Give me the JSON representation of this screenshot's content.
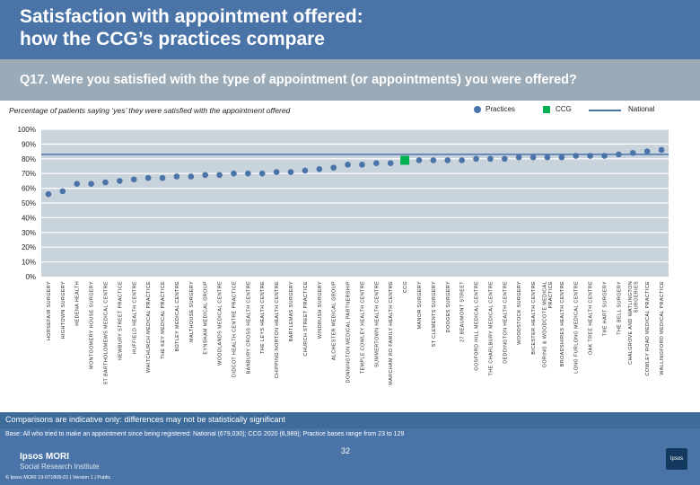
{
  "header": {
    "title_line1": "Satisfaction with appointment offered:",
    "title_line2": "how the CCG’s practices compare"
  },
  "question": "Q17. Were you satisfied with the type of appointment (or appointments) you were offered?",
  "subtitle": "Percentage of patients saying ‘yes’ they were satisfied with the appointment offered",
  "legend": {
    "practices": "Practices",
    "ccg": "CCG",
    "national": "National"
  },
  "colors": {
    "practices": "#4a74a8",
    "ccg": "#00b050",
    "national": "#4a74a8",
    "axis_text": "#222222",
    "grid": "#ffffff"
  },
  "chart_data": {
    "type": "scatter",
    "ylim": [
      0,
      100
    ],
    "yticks": [
      "0%",
      "10%",
      "20%",
      "30%",
      "40%",
      "50%",
      "60%",
      "70%",
      "80%",
      "90%",
      "100%"
    ],
    "national_value": 83,
    "categories": [
      "HORSEFAIR SURGERY",
      "HIGHTOWN SURGERY",
      "HEDENA HEALTH",
      "MONTGOMERY HOUSE SURGERY",
      "ST BARTHOLOMEWS MEDICAL CENTRE",
      "NEWBURY STREET PRACTICE",
      "HUFFIELD HEALTH CENTRE",
      "WHITCHURCH MEDICAL PRACTICE",
      "THE KEY MEDICAL PRACTICE",
      "BOTLEY MEDICAL CENTRE",
      "MALTHOUSE SURGERY",
      "EYNSHAM MEDICAL GROUP",
      "WOODLANDS MEDICAL CENTRE",
      "DIDCOT HEALTH CENTRE PRACTICE",
      "BANBURY CROSS HEALTH CENTRE",
      "THE LEYS HEALTH CENTRE",
      "CHIPPING NORTON HEALTH CENTRE",
      "BARTLEMAS SURGERY",
      "CHURCH STREET PRACTICE",
      "WINDRUSH SURGERY",
      "ALCHESTER MEDICAL GROUP",
      "DONNINGTON MEDICAL PARTNERSHIP",
      "TEMPLE COWLEY HEALTH CENTRE",
      "SUMMERTOWN HEALTH CENTRE",
      "MARCHAM RD FAMILY HEALTH CENTRE",
      "CCG",
      "MANOR SURGERY",
      "ST CLEMENTS SURGERY",
      "DOOGES SURGERY",
      "27 BEAUMONT STREET",
      "GOSFORD HILL MEDICAL CENTRE",
      "THE CHARLBURY MEDICAL CENTRE",
      "DEDDINGTON HEALTH CENTRE",
      "WOODSTOCK SURGERY",
      "BICESTER HEALTH CENTRE",
      "GORING & WOODCOTE MEDICAL PRACTICE",
      "BROADSHIRES HEALTH CENTRE",
      "LONG FURLONG MEDICAL CENTRE",
      "OAK TREE HEALTH CENTRE",
      "THE HART SURGERY",
      "THE BELL SURGERY",
      "CHALGROVE AND WATLINGTON SURGERIES",
      "COWLEY ROAD MEDICAL PRACTICE",
      "WALLINGFORD MEDICAL PRACTICE"
    ],
    "values": [
      56,
      58,
      63,
      63,
      64,
      65,
      66,
      67,
      67,
      68,
      68,
      69,
      69,
      70,
      70,
      70,
      71,
      71,
      72,
      73,
      74,
      76,
      76,
      77,
      77,
      79,
      79,
      79,
      79,
      79,
      80,
      80,
      80,
      81,
      81,
      81,
      81,
      82,
      82,
      82,
      83,
      84,
      85,
      86
    ],
    "ccg_index": 25
  },
  "note": "Comparisons are indicative only: differences may not be statistically significant",
  "base": "Base: All who tried to make an appointment since being registered: National (679,030); CCG 2020 (6,989); Practice bases range from 23 to 129",
  "footer": {
    "logo_line1": "Ipsos MORI",
    "logo_line2": "Social Research Institute",
    "left_text": "© Ipsos MORI      19-071809-01 | Version 1 | Public",
    "page": "32",
    "logo_mark": "Ipsos"
  }
}
